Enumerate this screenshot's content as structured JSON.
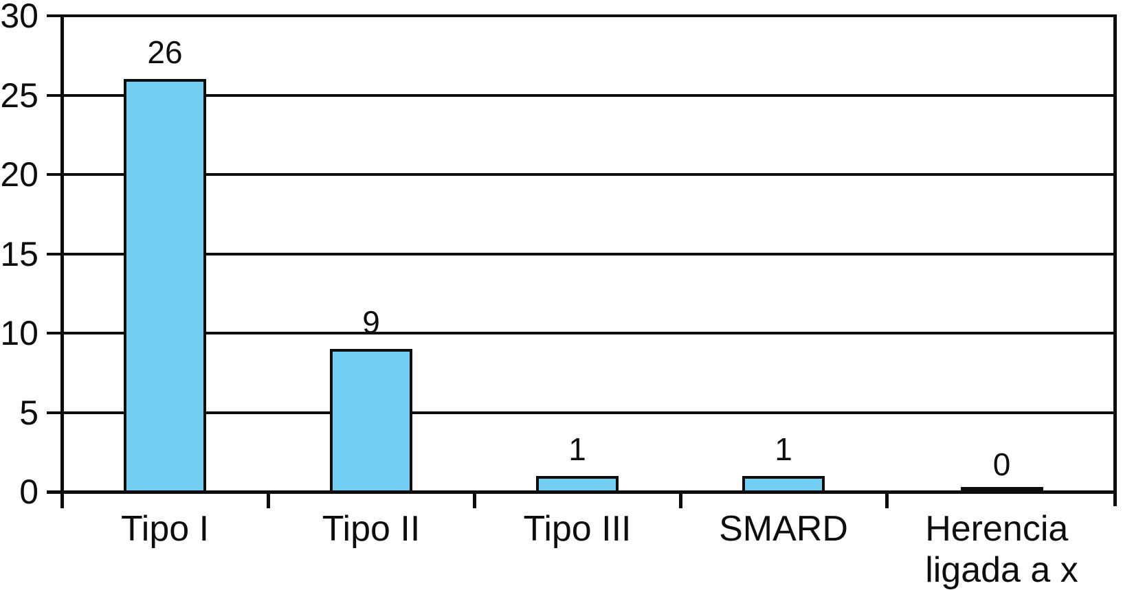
{
  "chart_data": {
    "type": "bar",
    "title": "",
    "xlabel": "",
    "ylabel": "",
    "categories": [
      "Tipo I",
      "Tipo II",
      "Tipo III",
      "SMARD",
      "Herencia\nligada a x"
    ],
    "values": [
      26,
      9,
      1,
      1,
      0
    ],
    "data_labels": [
      "26",
      "9",
      "1",
      "1",
      "0"
    ],
    "ylim": [
      0,
      30
    ],
    "ytick_labels": [
      "0",
      "5",
      "10",
      "15",
      "20",
      "25",
      "30"
    ],
    "yticks": [
      0,
      5,
      10,
      15,
      20,
      25,
      30
    ],
    "grid": "horizontal",
    "legend_position": "none",
    "bar_fill_color": "#73CEF3",
    "bar_border_color": "#0d0d0d",
    "zero_bar_color": "#0d0d0d",
    "axis_color": "#0d0d0d",
    "background_color": "#ffffff"
  }
}
